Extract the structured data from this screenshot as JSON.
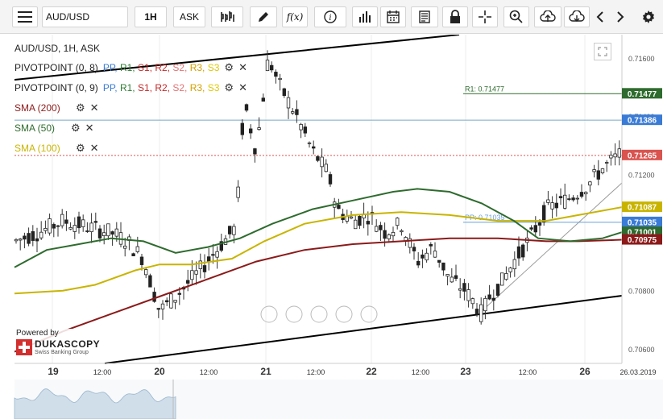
{
  "toolbar": {
    "symbol": "AUD/USD",
    "period": "1H",
    "side": "ASK",
    "fx_label": "f(x)"
  },
  "legend": {
    "title": "AUD/USD, 1H, ASK",
    "pivot1": {
      "label": "PIVOTPOINT (0, 8)",
      "items": [
        "PP,",
        "R1,",
        "S1,",
        "R2,",
        "S2,",
        "R3,",
        "S3"
      ]
    },
    "pivot2": {
      "label": "PIVOTPOINT (0, 9)",
      "items": [
        "PP,",
        "R1,",
        "S1,",
        "R2,",
        "S2,",
        "R3,",
        "S3"
      ]
    },
    "pivot_colors": [
      "#3a7bd5",
      "#2e7d32",
      "#c62828",
      "#c62828",
      "#e57373",
      "#d4a000",
      "#e0c800"
    ],
    "sma200": {
      "label": "SMA (200)",
      "color": "#8b1a1a"
    },
    "sma50": {
      "label": "SMA (50)",
      "color": "#2e6b2e"
    },
    "sma100": {
      "label": "SMA (100)",
      "color": "#c8b400"
    }
  },
  "branding": {
    "powered_by": "Powered by",
    "name": "DUKASCOPY",
    "tagline": "Swiss Banking Group"
  },
  "chart_data": {
    "type": "candlestick",
    "symbol": "AUD/USD",
    "timeframe": "1H",
    "y_axis": {
      "min": 0.7055,
      "max": 0.7168,
      "ticks": [
        0.706,
        0.708,
        0.712,
        0.714,
        0.716
      ],
      "tick_labels": [
        "0.70600",
        "0.70800",
        "0.71200",
        "0.71400",
        "0.71600"
      ]
    },
    "x_axis": {
      "labels": [
        "19",
        "12:00",
        "20",
        "12:00",
        "21",
        "12:00",
        "22",
        "12:00",
        "23",
        "12:00",
        "26",
        "26.03.2019"
      ]
    },
    "pivot_lines": [
      {
        "label": "R1: 0.71477",
        "value": 0.71477,
        "color": "#2e6b2e"
      },
      {
        "label": "PP: 0.71035",
        "value": 0.71035,
        "color": "#6a9fd8"
      }
    ],
    "price_tags": [
      {
        "text": "0.71477",
        "value": 0.71477,
        "color": "#2e6b2e"
      },
      {
        "text": "0.71386",
        "value": 0.71386,
        "color": "#3a7bd5"
      },
      {
        "text": "0.71265",
        "value": 0.71265,
        "color": "#d9534f"
      },
      {
        "text": "0.71087",
        "value": 0.71087,
        "color": "#c8b400"
      },
      {
        "text": "0.71035",
        "value": 0.71035,
        "color": "#3a7bd5"
      },
      {
        "text": "0.71001",
        "value": 0.71001,
        "color": "#2e6b2e"
      },
      {
        "text": "0.70975",
        "value": 0.70975,
        "color": "#8b1a1a"
      }
    ],
    "series": [
      {
        "name": "SMA (200)",
        "color": "#8b1a1a",
        "points": [
          [
            0,
            0.7059
          ],
          [
            60,
            0.7066
          ],
          [
            120,
            0.7072
          ],
          [
            180,
            0.7078
          ],
          [
            240,
            0.7084
          ],
          [
            300,
            0.709
          ],
          [
            360,
            0.7094
          ],
          [
            420,
            0.7096
          ],
          [
            480,
            0.7097
          ],
          [
            540,
            0.7098
          ],
          [
            600,
            0.7098
          ],
          [
            660,
            0.7097
          ],
          [
            700,
            0.7097
          ],
          [
            754,
            0.70975
          ]
        ]
      },
      {
        "name": "SMA (100)",
        "color": "#c8b400",
        "points": [
          [
            0,
            0.7079
          ],
          [
            60,
            0.708
          ],
          [
            100,
            0.7082
          ],
          [
            150,
            0.7087
          ],
          [
            180,
            0.7089
          ],
          [
            220,
            0.7089
          ],
          [
            270,
            0.7091
          ],
          [
            310,
            0.7097
          ],
          [
            360,
            0.7103
          ],
          [
            420,
            0.7106
          ],
          [
            480,
            0.7107
          ],
          [
            540,
            0.7106
          ],
          [
            600,
            0.7104
          ],
          [
            660,
            0.7104
          ],
          [
            700,
            0.7106
          ],
          [
            754,
            0.71087
          ]
        ]
      },
      {
        "name": "SMA (50)",
        "color": "#2e6b2e",
        "points": [
          [
            0,
            0.7088
          ],
          [
            40,
            0.7094
          ],
          [
            80,
            0.7096
          ],
          [
            120,
            0.7098
          ],
          [
            160,
            0.7097
          ],
          [
            200,
            0.7093
          ],
          [
            240,
            0.7095
          ],
          [
            280,
            0.7098
          ],
          [
            320,
            0.7103
          ],
          [
            370,
            0.7108
          ],
          [
            420,
            0.7111
          ],
          [
            470,
            0.7114
          ],
          [
            500,
            0.7115
          ],
          [
            540,
            0.7114
          ],
          [
            580,
            0.711
          ],
          [
            620,
            0.7104
          ],
          [
            650,
            0.7098
          ],
          [
            690,
            0.7097
          ],
          [
            730,
            0.7098
          ],
          [
            754,
            0.71001
          ]
        ]
      }
    ]
  }
}
